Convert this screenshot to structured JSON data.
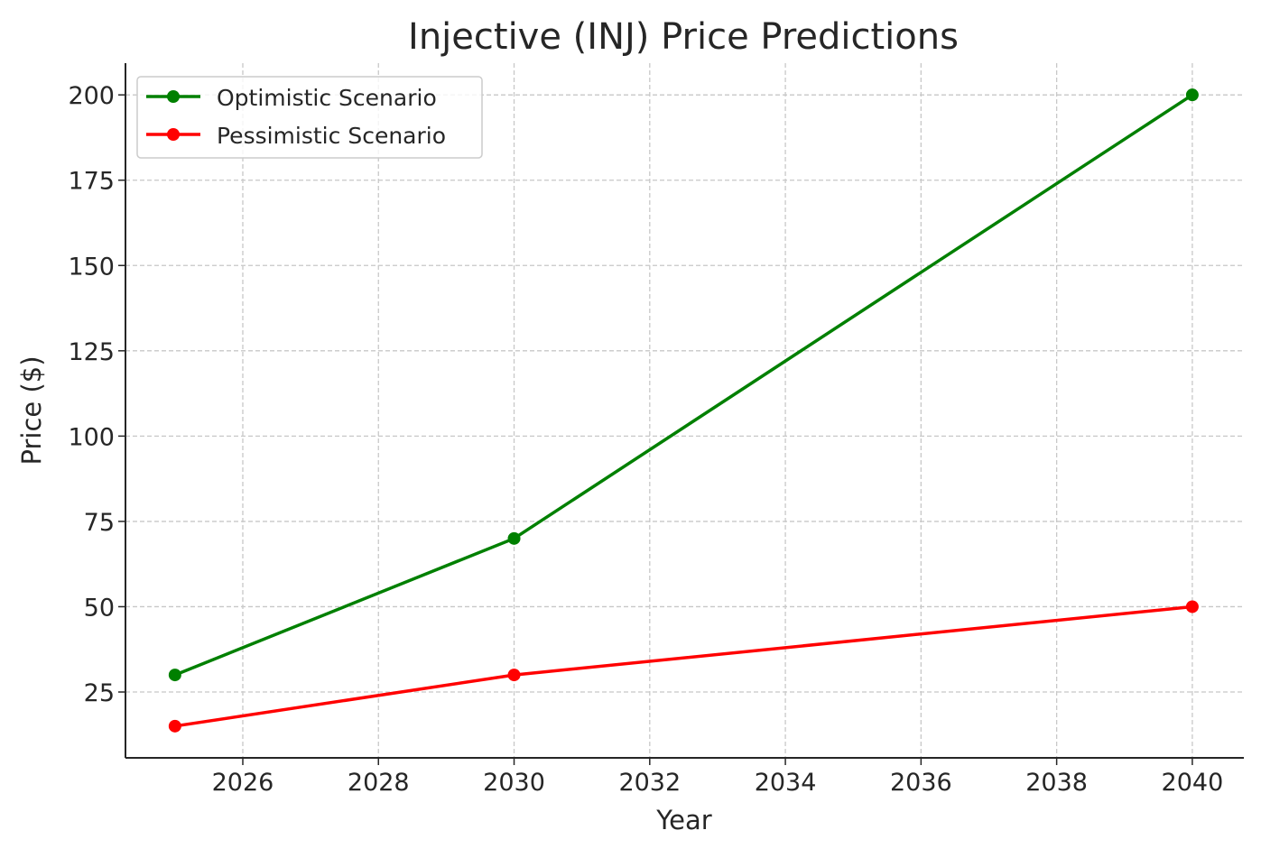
{
  "chart_data": {
    "type": "line",
    "title": "Injective (INJ) Price Predictions",
    "xlabel": "Year",
    "ylabel": "Price ($)",
    "x": [
      2025,
      2030,
      2040
    ],
    "series": [
      {
        "name": "Optimistic Scenario",
        "values": [
          30,
          70,
          200
        ],
        "color": "#008000",
        "marker": "circle"
      },
      {
        "name": "Pessimistic Scenario",
        "values": [
          15,
          30,
          50
        ],
        "color": "#ff0000",
        "marker": "circle"
      }
    ],
    "xlim": [
      2024.27,
      2040.76
    ],
    "ylim": [
      5.7,
      209.3
    ],
    "xticks": [
      2026,
      2028,
      2030,
      2032,
      2034,
      2036,
      2038,
      2040
    ],
    "yticks": [
      25,
      50,
      75,
      100,
      125,
      150,
      175,
      200
    ],
    "grid": true,
    "legend_position": "top-left"
  }
}
